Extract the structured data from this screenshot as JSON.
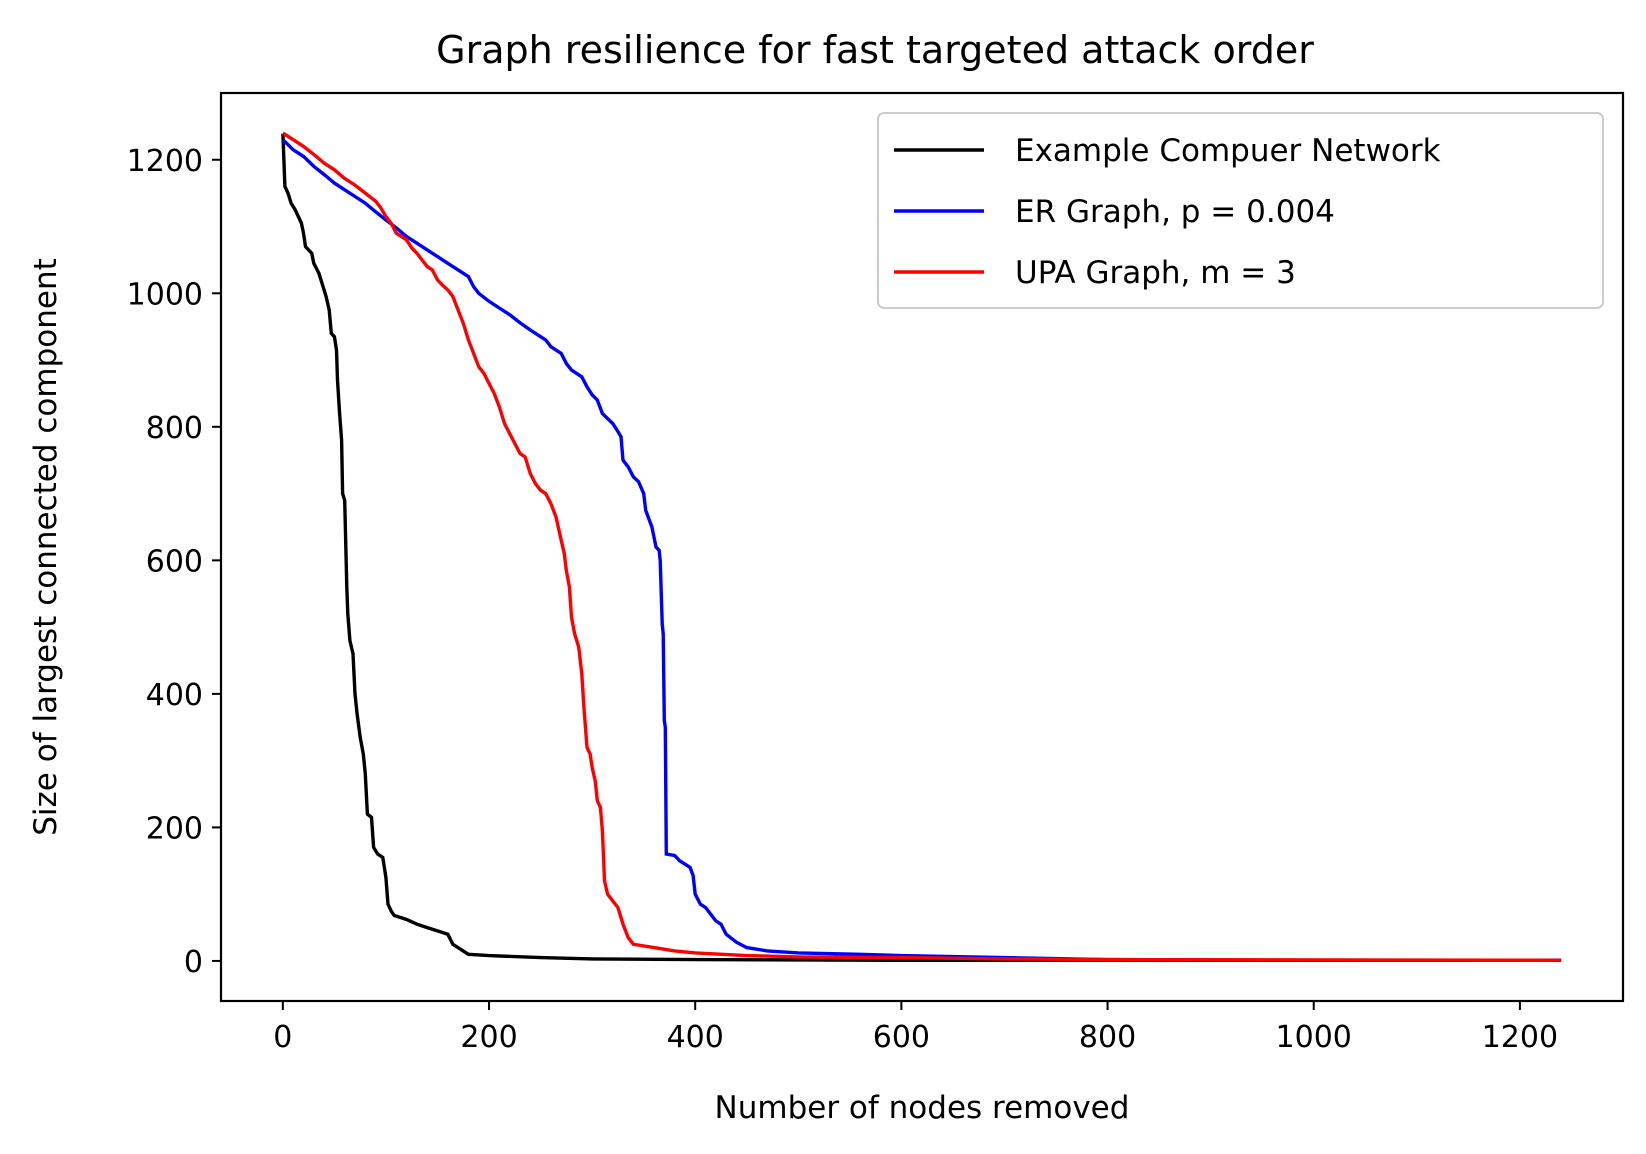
{
  "chart_data": {
    "type": "line",
    "title": "Graph resilience for fast targeted attack order",
    "xlabel": "Number of nodes removed",
    "ylabel": "Size of largest connected component",
    "xlim": [
      -60,
      1300
    ],
    "ylim": [
      -60,
      1300
    ],
    "xticks": [
      0,
      200,
      400,
      600,
      800,
      1000,
      1200
    ],
    "yticks": [
      0,
      200,
      400,
      600,
      800,
      1000,
      1200
    ],
    "grid": false,
    "legend_position": "top-right",
    "series": [
      {
        "name": "Example Compuer Network",
        "color": "#000000",
        "points": [
          [
            0,
            1239
          ],
          [
            2,
            1160
          ],
          [
            5,
            1150
          ],
          [
            8,
            1135
          ],
          [
            12,
            1125
          ],
          [
            15,
            1115
          ],
          [
            18,
            1105
          ],
          [
            20,
            1090
          ],
          [
            22,
            1070
          ],
          [
            25,
            1065
          ],
          [
            28,
            1060
          ],
          [
            30,
            1045
          ],
          [
            35,
            1030
          ],
          [
            38,
            1015
          ],
          [
            40,
            1005
          ],
          [
            42,
            995
          ],
          [
            45,
            975
          ],
          [
            47,
            940
          ],
          [
            50,
            935
          ],
          [
            52,
            915
          ],
          [
            53,
            870
          ],
          [
            55,
            820
          ],
          [
            57,
            780
          ],
          [
            58,
            700
          ],
          [
            60,
            690
          ],
          [
            62,
            560
          ],
          [
            63,
            520
          ],
          [
            65,
            480
          ],
          [
            68,
            460
          ],
          [
            70,
            400
          ],
          [
            72,
            370
          ],
          [
            75,
            335
          ],
          [
            78,
            310
          ],
          [
            80,
            280
          ],
          [
            82,
            220
          ],
          [
            86,
            215
          ],
          [
            88,
            170
          ],
          [
            92,
            160
          ],
          [
            97,
            155
          ],
          [
            100,
            125
          ],
          [
            102,
            85
          ],
          [
            105,
            75
          ],
          [
            108,
            68
          ],
          [
            120,
            62
          ],
          [
            130,
            55
          ],
          [
            140,
            50
          ],
          [
            150,
            45
          ],
          [
            160,
            40
          ],
          [
            165,
            25
          ],
          [
            180,
            10
          ],
          [
            200,
            8
          ],
          [
            250,
            5
          ],
          [
            300,
            3
          ],
          [
            400,
            2
          ],
          [
            600,
            1
          ],
          [
            1240,
            1
          ]
        ]
      },
      {
        "name": "ER Graph, p = 0.004",
        "color": "#0000ff",
        "points": [
          [
            0,
            1230
          ],
          [
            10,
            1215
          ],
          [
            20,
            1205
          ],
          [
            30,
            1190
          ],
          [
            40,
            1178
          ],
          [
            50,
            1165
          ],
          [
            60,
            1155
          ],
          [
            70,
            1145
          ],
          [
            80,
            1135
          ],
          [
            90,
            1122
          ],
          [
            100,
            1110
          ],
          [
            110,
            1098
          ],
          [
            120,
            1085
          ],
          [
            130,
            1075
          ],
          [
            140,
            1065
          ],
          [
            150,
            1055
          ],
          [
            160,
            1045
          ],
          [
            170,
            1035
          ],
          [
            180,
            1025
          ],
          [
            185,
            1010
          ],
          [
            190,
            1000
          ],
          [
            200,
            988
          ],
          [
            210,
            978
          ],
          [
            220,
            968
          ],
          [
            230,
            956
          ],
          [
            240,
            945
          ],
          [
            250,
            935
          ],
          [
            255,
            930
          ],
          [
            260,
            920
          ],
          [
            270,
            910
          ],
          [
            275,
            895
          ],
          [
            280,
            885
          ],
          [
            290,
            875
          ],
          [
            295,
            860
          ],
          [
            300,
            848
          ],
          [
            305,
            840
          ],
          [
            310,
            820
          ],
          [
            320,
            805
          ],
          [
            325,
            793
          ],
          [
            328,
            785
          ],
          [
            330,
            750
          ],
          [
            335,
            740
          ],
          [
            340,
            725
          ],
          [
            345,
            718
          ],
          [
            350,
            700
          ],
          [
            352,
            675
          ],
          [
            358,
            650
          ],
          [
            362,
            620
          ],
          [
            365,
            615
          ],
          [
            366,
            600
          ],
          [
            368,
            505
          ],
          [
            369,
            490
          ],
          [
            370,
            360
          ],
          [
            371,
            350
          ],
          [
            372,
            160
          ],
          [
            380,
            158
          ],
          [
            385,
            150
          ],
          [
            390,
            145
          ],
          [
            395,
            140
          ],
          [
            398,
            128
          ],
          [
            400,
            100
          ],
          [
            405,
            85
          ],
          [
            410,
            80
          ],
          [
            415,
            70
          ],
          [
            420,
            60
          ],
          [
            425,
            55
          ],
          [
            430,
            40
          ],
          [
            440,
            28
          ],
          [
            450,
            20
          ],
          [
            470,
            15
          ],
          [
            500,
            12
          ],
          [
            560,
            10
          ],
          [
            600,
            8
          ],
          [
            700,
            5
          ],
          [
            800,
            2
          ],
          [
            1000,
            1
          ],
          [
            1240,
            1
          ]
        ]
      },
      {
        "name": "UPA Graph, m = 3",
        "color": "#ff0000",
        "points": [
          [
            0,
            1240
          ],
          [
            10,
            1230
          ],
          [
            20,
            1220
          ],
          [
            30,
            1208
          ],
          [
            40,
            1195
          ],
          [
            50,
            1185
          ],
          [
            60,
            1172
          ],
          [
            70,
            1162
          ],
          [
            80,
            1150
          ],
          [
            90,
            1138
          ],
          [
            95,
            1128
          ],
          [
            100,
            1115
          ],
          [
            105,
            1105
          ],
          [
            110,
            1090
          ],
          [
            120,
            1080
          ],
          [
            125,
            1068
          ],
          [
            130,
            1060
          ],
          [
            135,
            1050
          ],
          [
            140,
            1040
          ],
          [
            145,
            1035
          ],
          [
            150,
            1020
          ],
          [
            155,
            1012
          ],
          [
            160,
            1005
          ],
          [
            165,
            995
          ],
          [
            170,
            975
          ],
          [
            175,
            955
          ],
          [
            180,
            930
          ],
          [
            185,
            910
          ],
          [
            190,
            890
          ],
          [
            195,
            880
          ],
          [
            200,
            865
          ],
          [
            205,
            850
          ],
          [
            210,
            830
          ],
          [
            215,
            805
          ],
          [
            220,
            790
          ],
          [
            225,
            775
          ],
          [
            230,
            760
          ],
          [
            235,
            755
          ],
          [
            240,
            730
          ],
          [
            245,
            715
          ],
          [
            250,
            705
          ],
          [
            255,
            700
          ],
          [
            260,
            685
          ],
          [
            265,
            665
          ],
          [
            270,
            630
          ],
          [
            273,
            610
          ],
          [
            275,
            585
          ],
          [
            278,
            560
          ],
          [
            280,
            515
          ],
          [
            283,
            490
          ],
          [
            285,
            480
          ],
          [
            287,
            470
          ],
          [
            290,
            430
          ],
          [
            292,
            380
          ],
          [
            295,
            320
          ],
          [
            298,
            310
          ],
          [
            300,
            290
          ],
          [
            303,
            270
          ],
          [
            305,
            240
          ],
          [
            308,
            230
          ],
          [
            310,
            195
          ],
          [
            312,
            120
          ],
          [
            315,
            100
          ],
          [
            320,
            90
          ],
          [
            325,
            80
          ],
          [
            330,
            55
          ],
          [
            335,
            35
          ],
          [
            340,
            25
          ],
          [
            360,
            20
          ],
          [
            380,
            15
          ],
          [
            400,
            12
          ],
          [
            450,
            8
          ],
          [
            500,
            6
          ],
          [
            600,
            5
          ],
          [
            700,
            3
          ],
          [
            800,
            2
          ],
          [
            1240,
            1
          ]
        ]
      }
    ]
  }
}
